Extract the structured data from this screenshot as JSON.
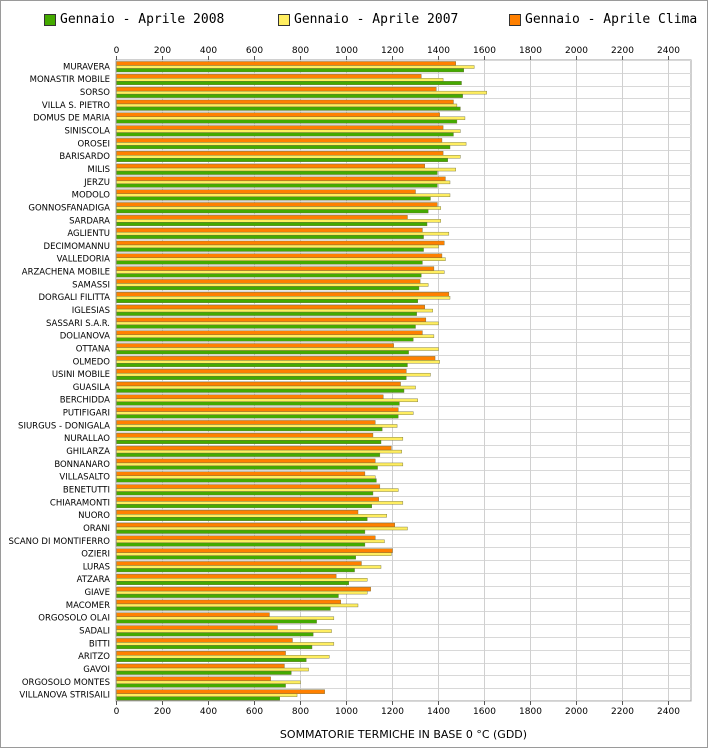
{
  "chart_data": {
    "type": "bar",
    "orientation": "horizontal",
    "xlabel": "SOMMATORIE TERMICHE IN BASE 0 °C (GDD)",
    "xlim": [
      0,
      2500
    ],
    "xticks": [
      0,
      200,
      400,
      600,
      800,
      1000,
      1200,
      1400,
      1600,
      1800,
      2000,
      2200,
      2400
    ],
    "grid": true,
    "legend_position": "top",
    "categories": [
      "MURAVERA",
      "MONASTIR MOBILE",
      "SORSO",
      "VILLA S. PIETRO",
      "DOMUS DE MARIA",
      "SINISCOLA",
      "OROSEI",
      "BARISARDO",
      "MILIS",
      "JERZU",
      "MODOLO",
      "GONNOSFANADIGA",
      "SARDARA",
      "AGLIENTU",
      "DECIMOMANNU",
      "VALLEDORIA",
      "ARZACHENA MOBILE",
      "SAMASSI",
      "DORGALI FILITTA",
      "IGLESIAS",
      "SASSARI S.A.R.",
      "DOLIANOVA",
      "OTTANA",
      "OLMEDO",
      "USINI MOBILE",
      "GUASILA",
      "BERCHIDDA",
      "PUTIFIGARI",
      "SIURGUS - DONIGALA",
      "NURALLAO",
      "GHILARZA",
      "BONNANARO",
      "VILLASALTO",
      "BENETUTTI",
      "CHIARAMONTI",
      "NUORO",
      "ORANI",
      "SCANO DI MONTIFERRO",
      "OZIERI",
      "LURAS",
      "ATZARA",
      "GIAVE",
      "MACOMER",
      "ORGOSOLO OLAI",
      "SADALI",
      "BITTI",
      "ARITZO",
      "GAVOI",
      "ORGOSOLO MONTES",
      "VILLANOVA STRISAILI"
    ],
    "series": [
      {
        "name": "Gennaio - Aprile Clima",
        "color": "#ff8000",
        "values": [
          1475,
          1325,
          1390,
          1465,
          1405,
          1420,
          1415,
          1420,
          1340,
          1430,
          1300,
          1395,
          1265,
          1330,
          1425,
          1415,
          1380,
          1320,
          1445,
          1340,
          1345,
          1330,
          1205,
          1385,
          1260,
          1235,
          1160,
          1225,
          1125,
          1115,
          1195,
          1125,
          1080,
          1145,
          1140,
          1050,
          1210,
          1125,
          1200,
          1065,
          955,
          1105,
          975,
          665,
          700,
          765,
          735,
          730,
          670,
          905
        ]
      },
      {
        "name": "Gennaio - Aprile 2007",
        "color": "#ffee60",
        "values": [
          1555,
          1420,
          1610,
          1480,
          1515,
          1495,
          1520,
          1495,
          1475,
          1450,
          1450,
          1410,
          1410,
          1445,
          1400,
          1430,
          1425,
          1355,
          1450,
          1375,
          1400,
          1380,
          1400,
          1405,
          1365,
          1300,
          1310,
          1290,
          1220,
          1245,
          1240,
          1245,
          1125,
          1225,
          1245,
          1175,
          1265,
          1165,
          1195,
          1150,
          1090,
          1090,
          1050,
          945,
          935,
          945,
          925,
          835,
          800,
          785
        ]
      },
      {
        "name": "Gennaio - Aprile 2008",
        "color": "#44aa00",
        "values": [
          1510,
          1500,
          1505,
          1495,
          1480,
          1465,
          1450,
          1440,
          1395,
          1395,
          1365,
          1355,
          1350,
          1335,
          1335,
          1330,
          1325,
          1315,
          1310,
          1305,
          1300,
          1290,
          1270,
          1265,
          1260,
          1250,
          1230,
          1225,
          1155,
          1150,
          1145,
          1135,
          1130,
          1115,
          1110,
          1090,
          1080,
          1080,
          1040,
          1035,
          1010,
          965,
          930,
          870,
          855,
          850,
          825,
          760,
          735,
          710
        ]
      }
    ]
  },
  "legend": [
    {
      "label": "Gennaio - Aprile 2008",
      "color": "#44aa00"
    },
    {
      "label": "Gennaio - Aprile 2007",
      "color": "#ffee60"
    },
    {
      "label": "Gennaio - Aprile Clima",
      "color": "#ff8000"
    }
  ]
}
